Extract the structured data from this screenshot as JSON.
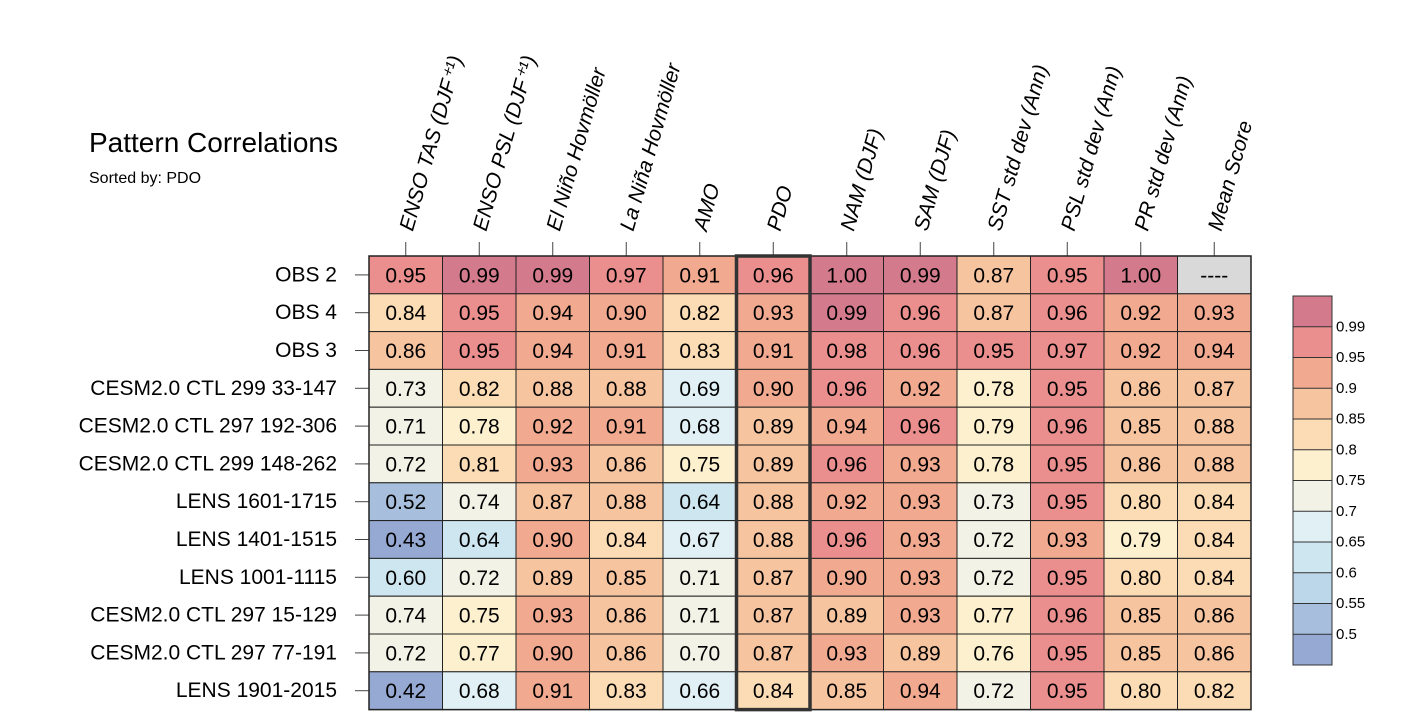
{
  "chart_data": {
    "type": "heatmap",
    "title": "Pattern Correlations",
    "subtitle": "Sorted by: PDO",
    "columns": [
      "ENSO TAS (DJF⁺¹)",
      "ENSO PSL (DJF⁺¹)",
      "El Niño Hovmöller",
      "La Niña Hovmöller",
      "AMO",
      "PDO",
      "NAM (DJF)",
      "SAM (DJF)",
      "SST std dev (Ann)",
      "PSL std dev (Ann)",
      "PR std dev (Ann)",
      "Mean Score"
    ],
    "highlighted_column": "PDO",
    "rows": [
      "OBS 2",
      "OBS 4",
      "OBS 3",
      "CESM2.0 CTL 299 33-147",
      "CESM2.0 CTL 297 192-306",
      "CESM2.0 CTL 299 148-262",
      "LENS 1601-1715",
      "LENS 1401-1515",
      "LENS 1001-1115",
      "CESM2.0 CTL 297 15-129",
      "CESM2.0 CTL 297 77-191",
      "LENS 1901-2015"
    ],
    "values": [
      [
        "0.95",
        "0.99",
        "0.99",
        "0.97",
        "0.91",
        "0.96",
        "1.00",
        "0.99",
        "0.87",
        "0.95",
        "1.00",
        "----"
      ],
      [
        "0.84",
        "0.95",
        "0.94",
        "0.90",
        "0.82",
        "0.93",
        "0.99",
        "0.96",
        "0.87",
        "0.96",
        "0.92",
        "0.93"
      ],
      [
        "0.86",
        "0.95",
        "0.94",
        "0.91",
        "0.83",
        "0.91",
        "0.98",
        "0.96",
        "0.95",
        "0.97",
        "0.92",
        "0.94"
      ],
      [
        "0.73",
        "0.82",
        "0.88",
        "0.88",
        "0.69",
        "0.90",
        "0.96",
        "0.92",
        "0.78",
        "0.95",
        "0.86",
        "0.87"
      ],
      [
        "0.71",
        "0.78",
        "0.92",
        "0.91",
        "0.68",
        "0.89",
        "0.94",
        "0.96",
        "0.79",
        "0.96",
        "0.85",
        "0.88"
      ],
      [
        "0.72",
        "0.81",
        "0.93",
        "0.86",
        "0.75",
        "0.89",
        "0.96",
        "0.93",
        "0.78",
        "0.95",
        "0.86",
        "0.88"
      ],
      [
        "0.52",
        "0.74",
        "0.87",
        "0.88",
        "0.64",
        "0.88",
        "0.92",
        "0.93",
        "0.73",
        "0.95",
        "0.80",
        "0.84"
      ],
      [
        "0.43",
        "0.64",
        "0.90",
        "0.84",
        "0.67",
        "0.88",
        "0.96",
        "0.93",
        "0.72",
        "0.93",
        "0.79",
        "0.84"
      ],
      [
        "0.60",
        "0.72",
        "0.89",
        "0.85",
        "0.71",
        "0.87",
        "0.90",
        "0.93",
        "0.72",
        "0.95",
        "0.80",
        "0.84"
      ],
      [
        "0.74",
        "0.75",
        "0.93",
        "0.86",
        "0.71",
        "0.87",
        "0.89",
        "0.93",
        "0.77",
        "0.96",
        "0.85",
        "0.86"
      ],
      [
        "0.72",
        "0.77",
        "0.90",
        "0.86",
        "0.70",
        "0.87",
        "0.93",
        "0.89",
        "0.76",
        "0.95",
        "0.85",
        "0.86"
      ],
      [
        "0.42",
        "0.68",
        "0.91",
        "0.83",
        "0.66",
        "0.84",
        "0.85",
        "0.94",
        "0.72",
        "0.95",
        "0.80",
        "0.82"
      ]
    ],
    "missing_color": "#d9d9d9",
    "colorbar": {
      "labels": [
        "0.99",
        "0.95",
        "0.9",
        "0.85",
        "0.8",
        "0.75",
        "0.7",
        "0.65",
        "0.6",
        "0.55",
        "0.5"
      ],
      "boundaries": [
        1.0,
        0.99,
        0.95,
        0.9,
        0.85,
        0.8,
        0.75,
        0.7,
        0.65,
        0.6,
        0.55,
        0.5,
        0.0
      ],
      "colors_top_to_bottom": [
        "#d37b8d",
        "#ea8f8d",
        "#f1a98f",
        "#f7c4a0",
        "#fbdcb4",
        "#fcf0cf",
        "#f2f3e6",
        "#e0f0f5",
        "#cde6f0",
        "#bcd7e9",
        "#a7bfdc",
        "#96a9d3"
      ]
    }
  }
}
